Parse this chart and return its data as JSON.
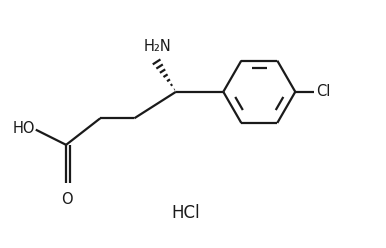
{
  "background_color": "#ffffff",
  "line_color": "#1a1a1a",
  "line_width": 1.6,
  "font_size_label": 10.5,
  "font_size_hcl": 12,
  "figsize": [
    3.86,
    2.48
  ],
  "dpi": 100,
  "HCl_text": "HCl",
  "NH2_text": "H₂N",
  "HO_text": "HO",
  "O_text": "O",
  "Cl_text": "Cl"
}
